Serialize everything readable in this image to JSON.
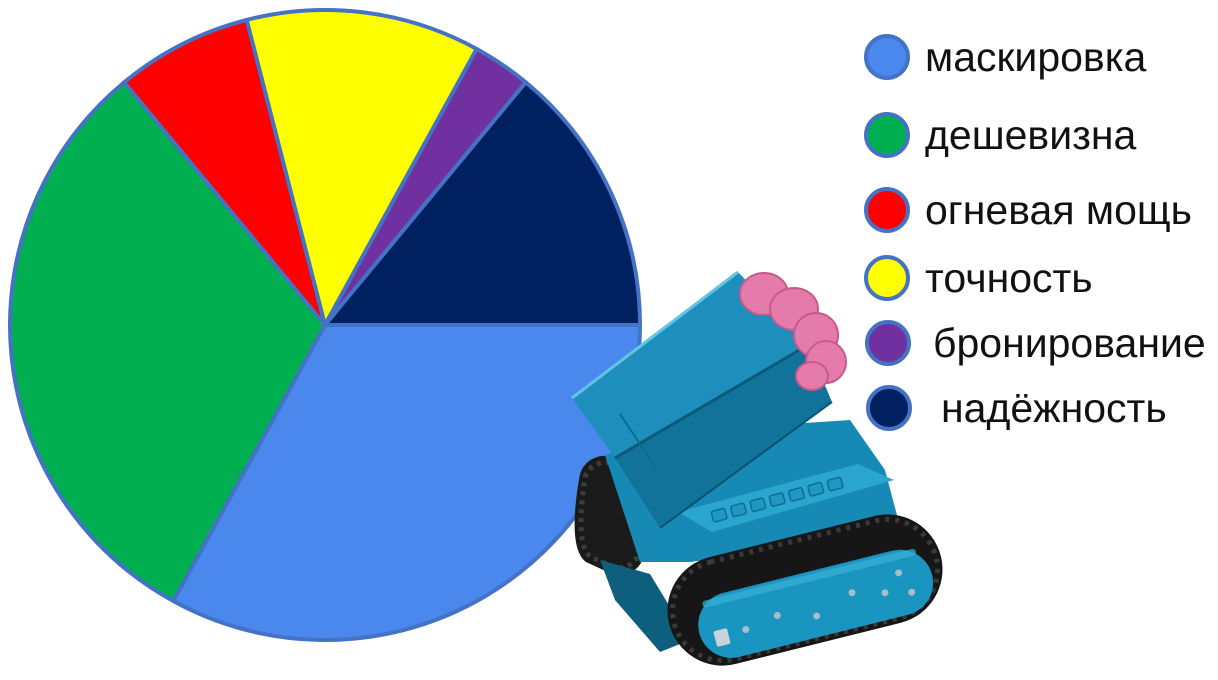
{
  "chart_data": {
    "type": "pie",
    "categories": [
      "маскировка",
      "дешевизна",
      "огневая мощь",
      "точность",
      "бронирование",
      "надёжность"
    ],
    "values": [
      33,
      31,
      7,
      12,
      3,
      14
    ],
    "colors": [
      "#4a88ee",
      "#00b050",
      "#ff0000",
      "#ffff00",
      "#7030a0",
      "#002060"
    ],
    "outline_color": "#4472c4",
    "legend": "right"
  }
}
